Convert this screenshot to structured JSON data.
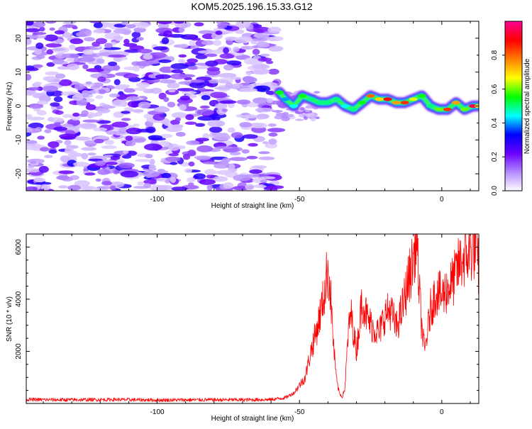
{
  "title": "KOM5.2025.196.15.33.G12",
  "chart_data": [
    {
      "type": "heatmap",
      "xlabel": "Height of straight line (km)",
      "ylabel": "Frequency (Hz)",
      "xlim": [
        -146,
        13
      ],
      "ylim": [
        -25,
        25
      ],
      "x_ticks": [
        -100,
        -50,
        0
      ],
      "y_ticks": [
        -20,
        -10,
        0,
        10,
        20
      ],
      "grid": false,
      "colorbar": {
        "label": "Normalized spectral amplitude",
        "range": [
          0,
          1
        ],
        "ticks": [
          0.0,
          0.2,
          0.4,
          0.6,
          0.8
        ],
        "tick_labels": [
          "0.0",
          "0.2",
          "0.4",
          "0.6",
          "0.8"
        ],
        "colors": [
          "#ffffff",
          "#b48cff",
          "#6a00ff",
          "#0000ff",
          "#00ffff",
          "#00ff00",
          "#ffff00",
          "#ff8000",
          "#ff0000",
          "#ff0090"
        ]
      },
      "noise_region_x": [
        -146,
        -58
      ],
      "signal_track": {
        "x": [
          -57,
          -55,
          -52,
          -49,
          -46,
          -43,
          -40,
          -37,
          -34,
          -31,
          -28,
          -25,
          -22,
          -19,
          -16,
          -13,
          -10,
          -7,
          -4,
          -1,
          2,
          5,
          8,
          11,
          13
        ],
        "y": [
          4,
          2,
          0,
          3,
          2,
          1,
          1,
          2,
          0,
          -1,
          1,
          3,
          2,
          2,
          1,
          1,
          2,
          3,
          0,
          -1,
          -1,
          1,
          -1,
          0,
          0
        ],
        "peak": [
          0.55,
          0.4,
          0.45,
          0.55,
          0.5,
          0.5,
          0.5,
          0.5,
          0.45,
          0.5,
          0.55,
          0.8,
          0.7,
          0.9,
          0.75,
          0.85,
          0.65,
          0.55,
          0.5,
          0.6,
          0.85,
          0.75,
          0.6,
          0.95,
          0.7
        ]
      }
    },
    {
      "type": "line",
      "xlabel": "Height of straight line (km)",
      "ylabel": "SNR (10 * v/v)",
      "xlim": [
        -146,
        13
      ],
      "ylim": [
        0,
        6500
      ],
      "x_ticks": [
        -100,
        -50,
        0
      ],
      "y_ticks": [
        2000,
        4000,
        6000
      ],
      "grid": false,
      "color": "#ff0000",
      "series": [
        {
          "x": [
            -146,
            -130,
            -115,
            -100,
            -85,
            -70,
            -60,
            -55,
            -52,
            -50,
            -48,
            -46,
            -44,
            -42,
            -41,
            -40,
            -39,
            -38,
            -37,
            -36,
            -35,
            -34,
            -33,
            -32,
            -30,
            -28,
            -26,
            -24,
            -22,
            -20,
            -18,
            -16,
            -14,
            -12,
            -10,
            -9,
            -8,
            -7,
            -6,
            -4,
            -2,
            0,
            2,
            4,
            6,
            8,
            10,
            12,
            13
          ],
          "y": [
            150,
            140,
            150,
            130,
            140,
            140,
            150,
            220,
            400,
            700,
            1000,
            2000,
            2800,
            3800,
            4400,
            5300,
            4000,
            2200,
            900,
            400,
            250,
            600,
            2500,
            3500,
            2000,
            4000,
            3200,
            2900,
            2700,
            3400,
            3600,
            2900,
            3600,
            4600,
            5500,
            6500,
            4500,
            2900,
            2000,
            3600,
            4300,
            4100,
            4400,
            4700,
            5300,
            5600,
            5800,
            6100,
            5000
          ]
        }
      ]
    }
  ]
}
